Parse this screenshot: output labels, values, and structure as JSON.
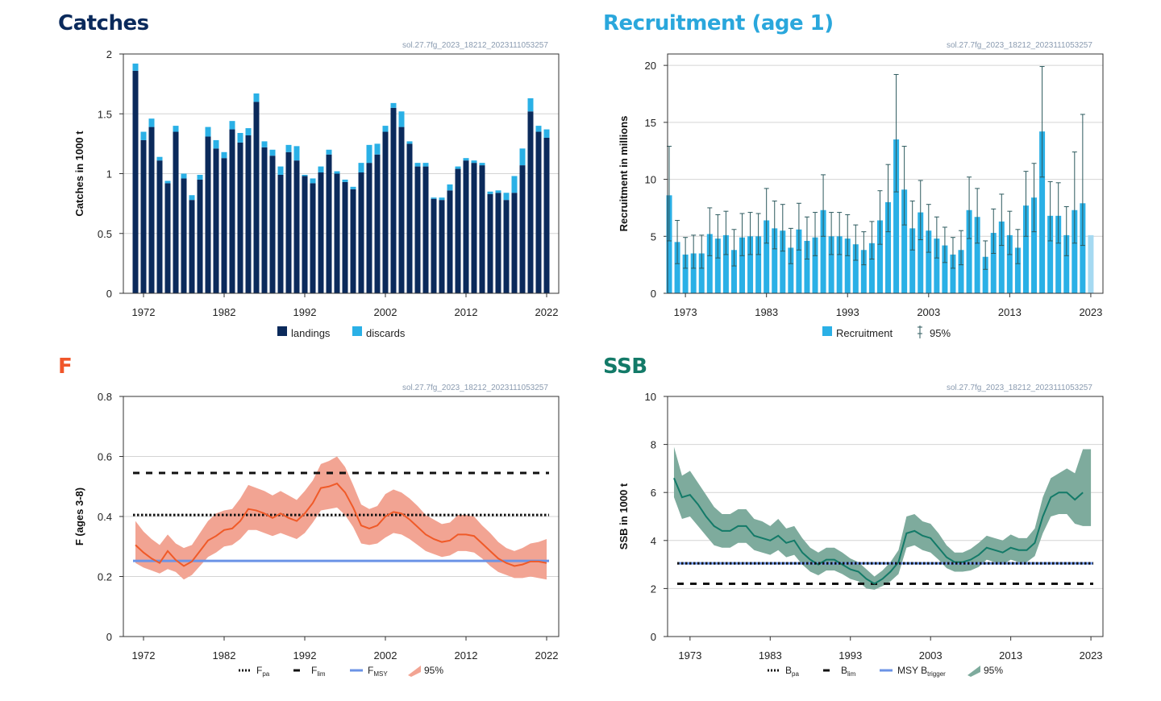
{
  "colors": {
    "catches_title": "#0a2a5c",
    "recruitment_title": "#2aa7dc",
    "f_title": "#f0562a",
    "ssb_title": "#137a68",
    "landings": "#0b2a5b",
    "discards": "#2ab0e6",
    "recruitment_bar": "#2ab0e6",
    "recruitment_last": "#a5d9f1",
    "f_line": "#f05a28",
    "f_band": "#f2a493",
    "fmsy": "#6b93e6",
    "ssb_line": "#137a68",
    "ssb_band": "#7eab9d",
    "btrigger": "#6b93e6"
  },
  "panels": {
    "catches": {
      "title": "Catches",
      "code": "sol.27.7fg_2023_18212_2023111053257"
    },
    "recruitment": {
      "title": "Recruitment (age 1)",
      "code": "sol.27.7fg_2023_18212_2023111053257"
    },
    "f": {
      "title": "F",
      "code": "sol.27.7fg_2023_18212_2023111053257"
    },
    "ssb": {
      "title": "SSB",
      "code": "sol.27.7fg_2023_18212_2023111053257"
    }
  },
  "chart_data": [
    {
      "id": "catches",
      "type": "bar",
      "ylabel": "Catches in 1000 t",
      "ylim": [
        0,
        2
      ],
      "yticks": [
        0,
        0.5,
        1,
        1.5,
        2
      ],
      "ytick_labels": [
        "0",
        "0.5",
        "1",
        "1.5",
        "2"
      ],
      "xlim": [
        1969.5,
        2023.5
      ],
      "xticks": [
        1972,
        1982,
        1992,
        2002,
        2012,
        2022
      ],
      "grid": true,
      "legend_position": "bottom",
      "x": [
        1971,
        1972,
        1973,
        1974,
        1975,
        1976,
        1977,
        1978,
        1979,
        1980,
        1981,
        1982,
        1983,
        1984,
        1985,
        1986,
        1987,
        1988,
        1989,
        1990,
        1991,
        1992,
        1993,
        1994,
        1995,
        1996,
        1997,
        1998,
        1999,
        2000,
        2001,
        2002,
        2003,
        2004,
        2005,
        2006,
        2007,
        2008,
        2009,
        2010,
        2011,
        2012,
        2013,
        2014,
        2015,
        2016,
        2017,
        2018,
        2019,
        2020,
        2021,
        2022
      ],
      "series": [
        {
          "name": "landings",
          "values": [
            1.86,
            1.28,
            1.39,
            1.11,
            0.92,
            1.35,
            0.96,
            0.78,
            0.95,
            1.31,
            1.21,
            1.13,
            1.37,
            1.26,
            1.32,
            1.6,
            1.22,
            1.15,
            0.99,
            1.18,
            1.11,
            0.98,
            0.92,
            1.01,
            1.16,
            1.0,
            0.93,
            0.87,
            1.01,
            1.09,
            1.16,
            1.35,
            1.55,
            1.39,
            1.25,
            1.06,
            1.06,
            0.79,
            0.78,
            0.86,
            1.04,
            1.11,
            1.09,
            1.07,
            0.83,
            0.84,
            0.78,
            0.84,
            1.07,
            1.52,
            1.35,
            1.3
          ]
        },
        {
          "name": "discards",
          "values": [
            0.06,
            0.07,
            0.07,
            0.03,
            0.02,
            0.05,
            0.04,
            0.04,
            0.04,
            0.08,
            0.07,
            0.05,
            0.07,
            0.08,
            0.06,
            0.07,
            0.05,
            0.05,
            0.07,
            0.06,
            0.12,
            0.01,
            0.04,
            0.05,
            0.04,
            0.02,
            0.02,
            0.02,
            0.08,
            0.15,
            0.09,
            0.05,
            0.04,
            0.13,
            0.02,
            0.03,
            0.03,
            0.01,
            0.02,
            0.05,
            0.02,
            0.02,
            0.02,
            0.02,
            0.02,
            0.02,
            0.06,
            0.14,
            0.14,
            0.11,
            0.05,
            0.07
          ]
        }
      ]
    },
    {
      "id": "recruitment",
      "type": "bar",
      "ylabel": "Recruitment in millions",
      "ylim": [
        0,
        21
      ],
      "yticks": [
        0,
        5,
        10,
        15,
        20
      ],
      "ytick_labels": [
        "0",
        "5",
        "10",
        "15",
        "20"
      ],
      "xlim": [
        1970.8,
        2024.5
      ],
      "xticks": [
        1973,
        1983,
        1993,
        2003,
        2013,
        2023
      ],
      "grid": true,
      "legend_position": "bottom",
      "x": [
        1971,
        1972,
        1973,
        1974,
        1975,
        1976,
        1977,
        1978,
        1979,
        1980,
        1981,
        1982,
        1983,
        1984,
        1985,
        1986,
        1987,
        1988,
        1989,
        1990,
        1991,
        1992,
        1993,
        1994,
        1995,
        1996,
        1997,
        1998,
        1999,
        2000,
        2001,
        2002,
        2003,
        2004,
        2005,
        2006,
        2007,
        2008,
        2009,
        2010,
        2011,
        2012,
        2013,
        2014,
        2015,
        2016,
        2017,
        2018,
        2019,
        2020,
        2021,
        2022,
        2023
      ],
      "series": [
        {
          "name": "Recruitment",
          "values": [
            8.6,
            4.5,
            3.4,
            3.5,
            3.5,
            5.2,
            4.8,
            5.1,
            3.8,
            4.9,
            5.0,
            5.0,
            6.4,
            5.7,
            5.5,
            4.0,
            5.6,
            4.6,
            4.9,
            7.3,
            5.0,
            5.0,
            4.8,
            4.3,
            3.8,
            4.4,
            6.4,
            8.0,
            13.5,
            9.1,
            5.7,
            7.1,
            5.5,
            4.8,
            4.2,
            3.4,
            3.8,
            7.3,
            6.7,
            3.2,
            5.3,
            6.3,
            5.1,
            4.0,
            7.7,
            8.4,
            14.2,
            6.8,
            6.8,
            5.1,
            7.3,
            7.9,
            5.1
          ]
        },
        {
          "name": "95%",
          "lower": [
            4.6,
            2.6,
            2.2,
            2.2,
            2.2,
            3.3,
            3.1,
            3.4,
            2.4,
            3.3,
            3.4,
            3.4,
            4.4,
            3.9,
            3.7,
            2.6,
            3.8,
            3.0,
            3.3,
            5.0,
            3.4,
            3.4,
            3.3,
            2.9,
            2.5,
            3.0,
            4.3,
            5.4,
            8.9,
            6.0,
            3.8,
            4.7,
            3.6,
            3.1,
            2.7,
            2.2,
            2.5,
            4.8,
            4.4,
            2.1,
            3.5,
            4.2,
            3.4,
            2.6,
            5.0,
            5.4,
            10.2,
            4.6,
            4.4,
            3.3,
            4.4,
            4.2,
            null
          ],
          "upper": [
            12.9,
            6.4,
            4.9,
            5.1,
            5.1,
            7.5,
            6.9,
            7.2,
            5.6,
            7.0,
            7.1,
            7.0,
            9.2,
            8.1,
            7.8,
            5.7,
            7.9,
            6.7,
            7.1,
            10.4,
            7.1,
            7.1,
            6.9,
            6.0,
            5.4,
            6.3,
            9.0,
            11.3,
            19.2,
            12.9,
            8.1,
            9.9,
            7.8,
            6.7,
            5.8,
            4.9,
            5.5,
            10.2,
            9.2,
            4.6,
            7.4,
            8.7,
            7.2,
            5.6,
            10.7,
            11.4,
            19.9,
            9.8,
            9.7,
            7.6,
            12.4,
            15.7,
            null
          ]
        }
      ],
      "last_bar_highlight": true
    },
    {
      "id": "f",
      "type": "line",
      "ylabel": "F (ages 3-8)",
      "ylim": [
        0,
        0.8
      ],
      "yticks": [
        0,
        0.2,
        0.4,
        0.6,
        0.8
      ],
      "ytick_labels": [
        "0",
        "0.2",
        "0.4",
        "0.6",
        "0.8"
      ],
      "xlim": [
        1969.5,
        2023.5
      ],
      "xticks": [
        1972,
        1982,
        1992,
        2002,
        2012,
        2022
      ],
      "grid": true,
      "legend_position": "bottom",
      "x": [
        1971,
        1972,
        1973,
        1974,
        1975,
        1976,
        1977,
        1978,
        1979,
        1980,
        1981,
        1982,
        1983,
        1984,
        1985,
        1986,
        1987,
        1988,
        1989,
        1990,
        1991,
        1992,
        1993,
        1994,
        1995,
        1996,
        1997,
        1998,
        1999,
        2000,
        2001,
        2002,
        2003,
        2004,
        2005,
        2006,
        2007,
        2008,
        2009,
        2010,
        2011,
        2012,
        2013,
        2014,
        2015,
        2016,
        2017,
        2018,
        2019,
        2020,
        2021,
        2022
      ],
      "series": [
        {
          "name": "F",
          "values": [
            0.305,
            0.28,
            0.26,
            0.245,
            0.285,
            0.255,
            0.235,
            0.25,
            0.285,
            0.32,
            0.335,
            0.355,
            0.36,
            0.385,
            0.425,
            0.42,
            0.41,
            0.395,
            0.41,
            0.395,
            0.385,
            0.41,
            0.445,
            0.495,
            0.5,
            0.51,
            0.48,
            0.43,
            0.37,
            0.36,
            0.37,
            0.4,
            0.415,
            0.41,
            0.39,
            0.365,
            0.34,
            0.325,
            0.315,
            0.32,
            0.34,
            0.34,
            0.335,
            0.31,
            0.285,
            0.26,
            0.245,
            0.235,
            0.24,
            0.25,
            0.25,
            0.245
          ]
        },
        {
          "name": "95%",
          "lower": [
            0.245,
            0.23,
            0.22,
            0.21,
            0.225,
            0.215,
            0.19,
            0.205,
            0.235,
            0.265,
            0.28,
            0.3,
            0.305,
            0.325,
            0.355,
            0.355,
            0.345,
            0.335,
            0.345,
            0.335,
            0.325,
            0.345,
            0.38,
            0.42,
            0.425,
            0.43,
            0.405,
            0.365,
            0.31,
            0.305,
            0.31,
            0.33,
            0.345,
            0.34,
            0.325,
            0.305,
            0.285,
            0.275,
            0.265,
            0.27,
            0.285,
            0.285,
            0.28,
            0.26,
            0.235,
            0.215,
            0.205,
            0.195,
            0.195,
            0.2,
            0.195,
            0.19
          ],
          "upper": [
            0.385,
            0.35,
            0.325,
            0.305,
            0.34,
            0.31,
            0.295,
            0.305,
            0.345,
            0.385,
            0.41,
            0.42,
            0.425,
            0.46,
            0.505,
            0.495,
            0.485,
            0.47,
            0.485,
            0.47,
            0.455,
            0.485,
            0.52,
            0.575,
            0.585,
            0.6,
            0.565,
            0.505,
            0.44,
            0.425,
            0.435,
            0.475,
            0.49,
            0.48,
            0.46,
            0.435,
            0.405,
            0.39,
            0.375,
            0.38,
            0.405,
            0.405,
            0.4,
            0.37,
            0.345,
            0.315,
            0.295,
            0.285,
            0.295,
            0.31,
            0.315,
            0.325
          ]
        }
      ],
      "reference_lines": [
        {
          "name": "Fpa",
          "value": 0.405,
          "style": "dotted"
        },
        {
          "name": "Flim",
          "value": 0.545,
          "style": "dashed"
        },
        {
          "name": "FMSY",
          "value": 0.252,
          "style": "solid"
        }
      ]
    },
    {
      "id": "ssb",
      "type": "line",
      "ylabel": "SSB in 1000 t",
      "ylim": [
        0,
        10
      ],
      "yticks": [
        0,
        2,
        4,
        6,
        8,
        10
      ],
      "ytick_labels": [
        "0",
        "2",
        "4",
        "6",
        "8",
        "10"
      ],
      "xlim": [
        1970.2,
        2024.5
      ],
      "xticks": [
        1973,
        1983,
        1993,
        2003,
        2013,
        2023
      ],
      "grid": true,
      "legend_position": "bottom",
      "x": [
        1971,
        1972,
        1973,
        1974,
        1975,
        1976,
        1977,
        1978,
        1979,
        1980,
        1981,
        1982,
        1983,
        1984,
        1985,
        1986,
        1987,
        1988,
        1989,
        1990,
        1991,
        1992,
        1993,
        1994,
        1995,
        1996,
        1997,
        1998,
        1999,
        2000,
        2001,
        2002,
        2003,
        2004,
        2005,
        2006,
        2007,
        2008,
        2009,
        2010,
        2011,
        2012,
        2013,
        2014,
        2015,
        2016,
        2017,
        2018,
        2019,
        2020,
        2021,
        2022,
        2023
      ],
      "series": [
        {
          "name": "SSB",
          "values": [
            6.6,
            5.8,
            5.9,
            5.5,
            5.0,
            4.6,
            4.4,
            4.4,
            4.6,
            4.6,
            4.2,
            4.1,
            4.0,
            4.2,
            3.9,
            4.0,
            3.5,
            3.2,
            3.0,
            3.2,
            3.2,
            3.0,
            2.8,
            2.7,
            2.4,
            2.2,
            2.4,
            2.7,
            3.1,
            4.3,
            4.4,
            4.2,
            4.1,
            3.7,
            3.3,
            3.1,
            3.1,
            3.2,
            3.4,
            3.7,
            3.6,
            3.5,
            3.7,
            3.6,
            3.6,
            3.9,
            5.0,
            5.8,
            6.0,
            6.0,
            5.7,
            6.0,
            null
          ]
        },
        {
          "name": "95%",
          "lower": [
            5.8,
            4.9,
            5.0,
            4.6,
            4.2,
            3.8,
            3.7,
            3.7,
            3.9,
            3.9,
            3.6,
            3.5,
            3.4,
            3.6,
            3.3,
            3.4,
            3.0,
            2.7,
            2.55,
            2.75,
            2.75,
            2.6,
            2.4,
            2.3,
            2.0,
            1.95,
            2.1,
            2.3,
            2.6,
            3.7,
            3.8,
            3.6,
            3.5,
            3.2,
            2.85,
            2.7,
            2.7,
            2.75,
            2.9,
            3.2,
            3.1,
            3.0,
            3.2,
            3.1,
            3.1,
            3.35,
            4.3,
            5.0,
            5.1,
            5.1,
            4.7,
            4.6,
            4.6
          ],
          "upper": [
            7.9,
            6.7,
            6.9,
            6.4,
            5.9,
            5.4,
            5.1,
            5.1,
            5.3,
            5.3,
            4.9,
            4.8,
            4.6,
            4.9,
            4.5,
            4.6,
            4.1,
            3.7,
            3.5,
            3.7,
            3.7,
            3.5,
            3.25,
            3.1,
            2.8,
            2.5,
            2.75,
            3.1,
            3.6,
            5.0,
            5.1,
            4.8,
            4.7,
            4.3,
            3.8,
            3.5,
            3.5,
            3.65,
            3.9,
            4.2,
            4.1,
            4.0,
            4.25,
            4.1,
            4.1,
            4.5,
            5.8,
            6.6,
            6.8,
            7.0,
            6.8,
            7.8,
            7.8
          ]
        }
      ],
      "reference_lines": [
        {
          "name": "Bpa",
          "value": 3.05,
          "style": "dotted"
        },
        {
          "name": "Blim",
          "value": 2.2,
          "style": "dashed"
        },
        {
          "name": "MSY Btrigger",
          "value": 3.05,
          "style": "solid"
        }
      ]
    }
  ],
  "legends": {
    "catches": [
      {
        "label": "landings"
      },
      {
        "label": "discards"
      }
    ],
    "recruitment": [
      {
        "label": "Recruitment"
      },
      {
        "label": "95%"
      }
    ],
    "f": [
      {
        "main": "F",
        "sub": "pa"
      },
      {
        "main": "F",
        "sub": "lim"
      },
      {
        "main": "F",
        "sub": "MSY"
      },
      {
        "main": "95%",
        "sub": ""
      }
    ],
    "ssb": [
      {
        "main": "B",
        "sub": "pa"
      },
      {
        "main": "B",
        "sub": "lim"
      },
      {
        "main": "MSY B",
        "sub": "trigger"
      },
      {
        "main": "95%",
        "sub": ""
      }
    ]
  }
}
